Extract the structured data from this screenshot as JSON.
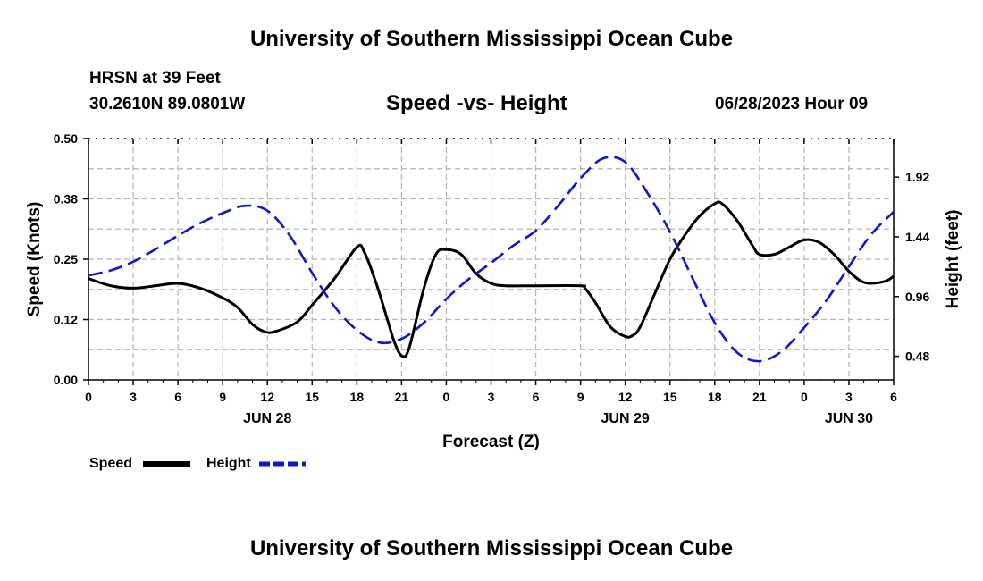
{
  "header": {
    "title": "University of Southern Mississippi Ocean Cube",
    "station": "HRSN at 39 Feet",
    "coords": "30.2610N  89.0801W",
    "datetime": "06/28/2023 Hour 09"
  },
  "footer": {
    "title": "University of Southern Mississippi Ocean Cube"
  },
  "legend": {
    "speed_label": "Speed",
    "height_label": "Height"
  },
  "colors": {
    "speed": "#000000",
    "height": "#1414c8",
    "grid": "#b4b4b4"
  },
  "chart_data": {
    "type": "line",
    "title": "Speed -vs- Height",
    "xlabel": "Forecast (Z)",
    "ylabel": "Speed (Knots)",
    "y2label": "Height (feet)",
    "xlim": [
      0,
      54
    ],
    "ylim": [
      0,
      0.5
    ],
    "y2lim": [
      0.29,
      2.23
    ],
    "x_ticks": [
      0,
      3,
      6,
      9,
      12,
      15,
      18,
      21,
      24,
      27,
      30,
      33,
      36,
      39,
      42,
      45,
      48,
      51,
      54
    ],
    "x_tick_labels": [
      "0",
      "3",
      "6",
      "9",
      "12",
      "15",
      "18",
      "21",
      "0",
      "3",
      "6",
      "9",
      "12",
      "15",
      "18",
      "21",
      "0",
      "3",
      "6"
    ],
    "date_labels": [
      {
        "x": 12,
        "label": "JUN 28"
      },
      {
        "x": 36,
        "label": "JUN 29"
      },
      {
        "x": 51,
        "label": "JUN 30"
      }
    ],
    "y_ticks": [
      0,
      0.125,
      0.25,
      0.375,
      0.5
    ],
    "y_tick_labels": [
      "0.00",
      "0.12",
      "0.25",
      "0.38",
      "0.50"
    ],
    "y2_ticks": [
      0.48,
      0.96,
      1.44,
      1.92
    ],
    "y2_tick_labels": [
      "0.48",
      "0.96",
      "1.44",
      "1.92"
    ],
    "series": [
      {
        "name": "Speed",
        "axis": "left",
        "style": "solid",
        "x": [
          0,
          1.5,
          3,
          4.5,
          6,
          7.5,
          9,
          10,
          11,
          11.8,
          12.5,
          14,
          15,
          16.5,
          18,
          18.5,
          19.3,
          20,
          20.5,
          21,
          21.5,
          22.5,
          23.3,
          24,
          25,
          26,
          27,
          28,
          30,
          33,
          33.3,
          34,
          35,
          36,
          36.5,
          37,
          38,
          39,
          40,
          41,
          42,
          42.5,
          43.5,
          44.5,
          45,
          46,
          47,
          48,
          49,
          50,
          51,
          51.8,
          52.5,
          53.5,
          54
        ],
        "values": [
          0.21,
          0.195,
          0.19,
          0.195,
          0.2,
          0.19,
          0.17,
          0.15,
          0.115,
          0.1,
          0.1,
          0.12,
          0.155,
          0.21,
          0.275,
          0.265,
          0.2,
          0.13,
          0.08,
          0.05,
          0.065,
          0.19,
          0.26,
          0.27,
          0.26,
          0.22,
          0.2,
          0.195,
          0.195,
          0.195,
          0.19,
          0.16,
          0.11,
          0.09,
          0.092,
          0.11,
          0.18,
          0.25,
          0.3,
          0.34,
          0.365,
          0.365,
          0.33,
          0.28,
          0.26,
          0.26,
          0.275,
          0.29,
          0.285,
          0.26,
          0.225,
          0.205,
          0.2,
          0.205,
          0.215
        ]
      },
      {
        "name": "Height",
        "axis": "right",
        "style": "dashed",
        "x": [
          0,
          1.5,
          3,
          4.5,
          6,
          7.5,
          9,
          10.5,
          12,
          13.5,
          15,
          16.5,
          18,
          19.5,
          21,
          22.5,
          24,
          25.5,
          27,
          28.5,
          30,
          31.5,
          33,
          34.5,
          36,
          37.5,
          39,
          40.5,
          42,
          43.5,
          45,
          46.5,
          48,
          49.5,
          51,
          52.5,
          54
        ],
        "values": [
          1.13,
          1.17,
          1.24,
          1.34,
          1.45,
          1.55,
          1.63,
          1.69,
          1.65,
          1.45,
          1.15,
          0.88,
          0.69,
          0.59,
          0.62,
          0.75,
          0.94,
          1.1,
          1.23,
          1.37,
          1.49,
          1.69,
          1.91,
          2.07,
          2.04,
          1.79,
          1.48,
          1.11,
          0.75,
          0.51,
          0.44,
          0.52,
          0.71,
          0.93,
          1.2,
          1.46,
          1.64
        ]
      }
    ]
  }
}
